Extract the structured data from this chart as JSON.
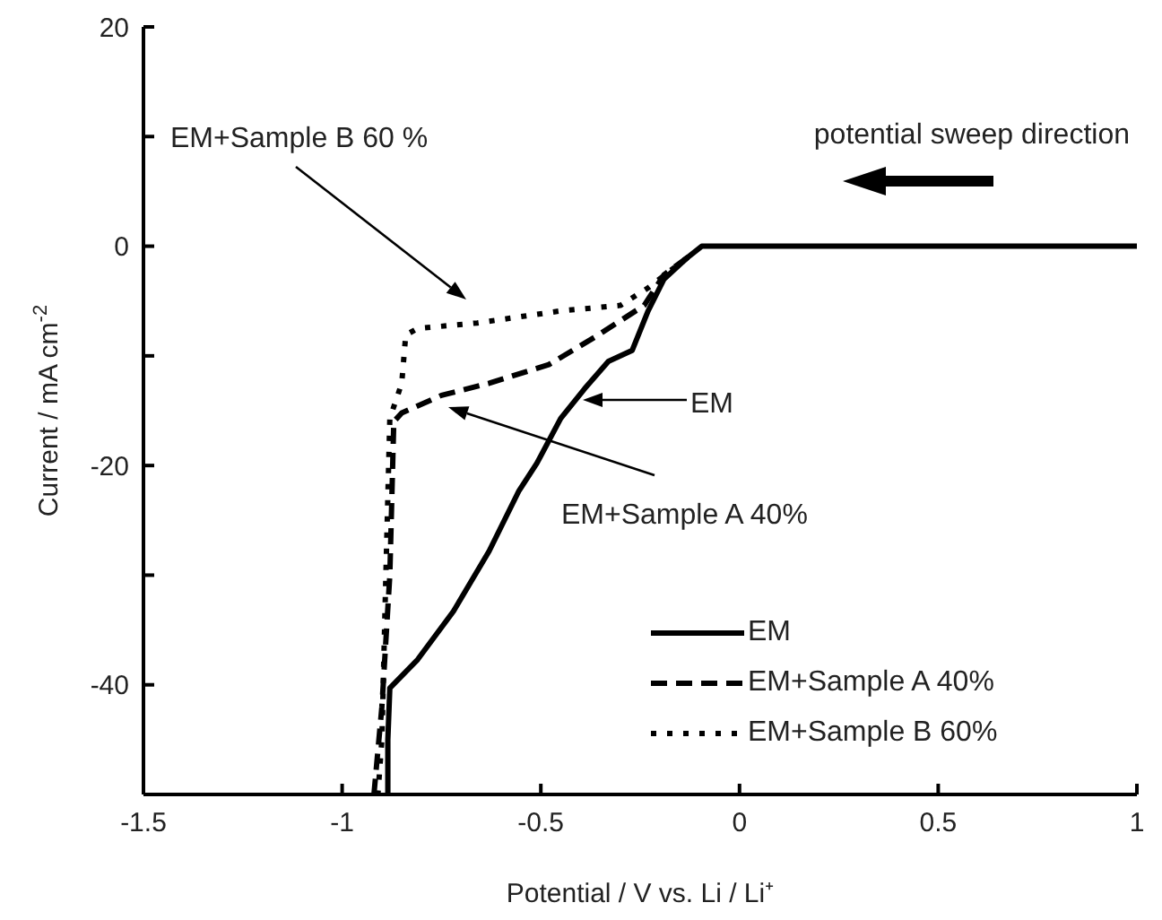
{
  "chart_data": {
    "type": "line",
    "xlabel": "Potential / V vs. Li / Li⁺",
    "ylabel": "Current / mA cm$^{-2}$",
    "xlim": [
      -1.5,
      1
    ],
    "xticks": [
      -1.5,
      -1,
      -0.5,
      0,
      0.5,
      1
    ],
    "ylim": [
      -50,
      20
    ],
    "yticks": [
      20,
      {
        "value": 10,
        "label": null
      },
      0,
      {
        "value": -10,
        "label": null
      },
      -20,
      {
        "value": -30,
        "label": null
      },
      -40,
      {
        "value": -50,
        "label": null
      }
    ],
    "legend": "bottom right",
    "marker": "none",
    "series": [
      {
        "name": "EM",
        "color": "#000000",
        "line_style": "solid",
        "x": [
          1,
          0.5,
          0,
          -0.095,
          -0.13,
          -0.19,
          -0.23,
          -0.27,
          -0.33,
          -0.39,
          -0.45,
          -0.51,
          -0.555,
          -0.63,
          -0.72,
          -0.81,
          -0.88,
          -0.885,
          -0.885
        ],
        "values": [
          0,
          0,
          0,
          0,
          -1,
          -3,
          -5.9,
          -9.5,
          -10.5,
          -13,
          -15.7,
          -19.8,
          -22.3,
          -27.8,
          -33.3,
          -37.7,
          -40.3,
          -45,
          -50
        ]
      },
      {
        "name": "EM+Sample A 40%",
        "color": "#000000",
        "line_style": "dashed",
        "x": [
          -0.13,
          -0.19,
          -0.24,
          -0.36,
          -0.48,
          -0.63,
          -0.75,
          -0.85,
          -0.87,
          -0.88,
          -0.9,
          -0.92
        ],
        "values": [
          -1,
          -2.6,
          -5.4,
          -8.2,
          -10.8,
          -12.5,
          -13.6,
          -15.2,
          -16,
          -30,
          -42,
          -50
        ]
      },
      {
        "name": "EM+Sample B 60%",
        "color": "#000000",
        "line_style": "dotted",
        "x": [
          -0.13,
          -0.23,
          -0.3,
          -0.45,
          -0.66,
          -0.81,
          -0.84,
          -0.85,
          -0.88,
          -0.89,
          -0.9,
          -0.91
        ],
        "values": [
          -1,
          -3.8,
          -5.4,
          -5.9,
          -7,
          -7.5,
          -8.1,
          -12.5,
          -15.7,
          -30,
          -45,
          -50
        ]
      }
    ],
    "annotations": [
      "EM+Sample B 60 %",
      "EM",
      "EM+Sample A 40%",
      "potential sweep direction"
    ]
  }
}
